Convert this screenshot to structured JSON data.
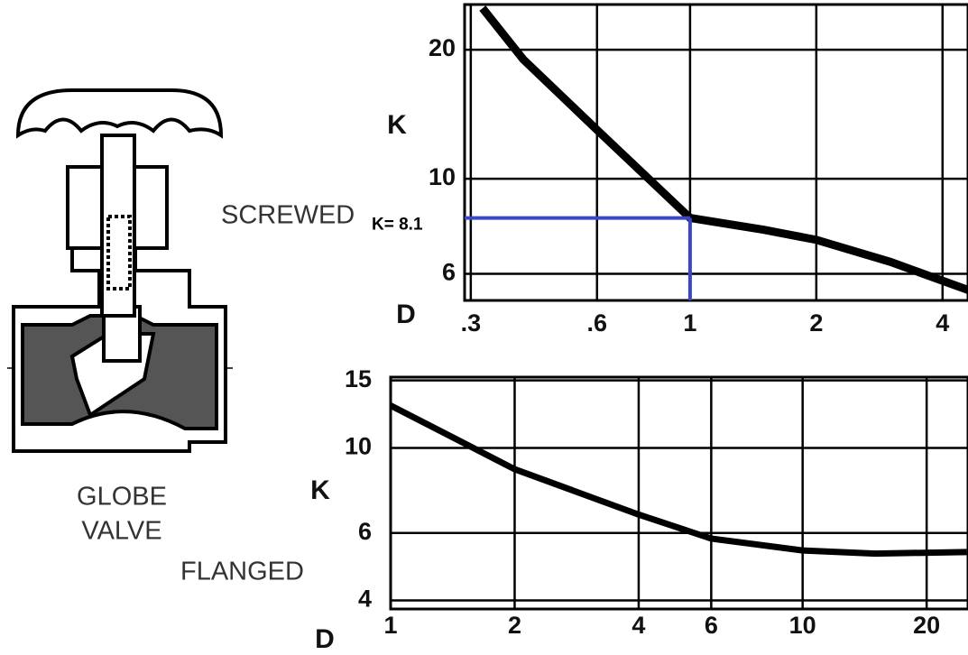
{
  "chart_data": [
    {
      "type": "line",
      "label": "SCREWED",
      "xlabel": "D",
      "ylabel": "K",
      "xscale": "log",
      "yscale": "log",
      "grid": true,
      "color": "#000000",
      "x": [
        0.32,
        0.4,
        0.6,
        1,
        1.5,
        2,
        3,
        4.6
      ],
      "values": [
        25,
        19,
        13,
        8.1,
        7.6,
        7.2,
        6.4,
        5.5
      ],
      "xlim": [
        0.29,
        4.6
      ],
      "ylim": [
        5.2,
        25.5
      ],
      "xticks": [
        {
          "value": 0.3,
          "label": ".3"
        },
        {
          "value": 0.6,
          "label": ".6"
        },
        1,
        2,
        4
      ],
      "yticks": [
        20,
        10,
        6
      ],
      "annotation": {
        "text": "K= 8.1",
        "x": 1,
        "y": 8.1,
        "color": "#3a48c8"
      }
    },
    {
      "type": "line",
      "label": "FLANGED",
      "xlabel": "D",
      "ylabel": "K",
      "xscale": "log",
      "yscale": "log",
      "grid": true,
      "color": "#000000",
      "x": [
        1,
        2,
        4,
        6,
        10,
        15,
        25
      ],
      "values": [
        12.9,
        8.8,
        6.7,
        5.8,
        5.4,
        5.3,
        5.35
      ],
      "xlim": [
        1,
        25.2
      ],
      "ylim": [
        3.8,
        15.3
      ],
      "xticks": [
        1,
        2,
        4,
        6,
        10,
        20
      ],
      "yticks": [
        15,
        10,
        6,
        4
      ]
    }
  ],
  "figure": {
    "caption": [
      "GLOBE",
      "VALVE"
    ]
  }
}
